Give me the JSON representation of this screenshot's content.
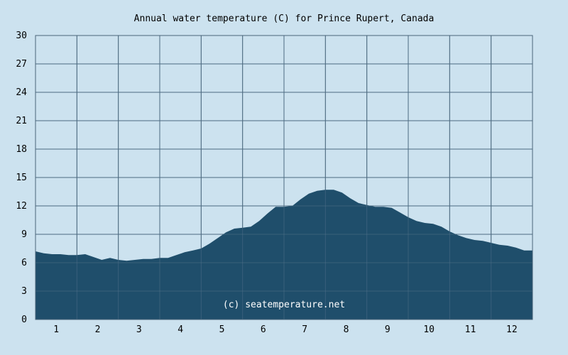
{
  "chart_data": {
    "type": "area",
    "title": "Annual water temperature (C) for Prince Rupert, Canada",
    "xlabel": "",
    "ylabel": "",
    "ylim": [
      0,
      30
    ],
    "yticks": [
      "0",
      "3",
      "6",
      "9",
      "12",
      "15",
      "18",
      "21",
      "24",
      "27",
      "30"
    ],
    "categories": [
      "1",
      "2",
      "3",
      "4",
      "5",
      "6",
      "7",
      "8",
      "9",
      "10",
      "11",
      "12"
    ],
    "xlim": [
      0.5,
      12.5
    ],
    "grid": true,
    "watermark": "(c) seatemperature.net",
    "series": [
      {
        "color": "#1f4e6b",
        "x": [
          0.5,
          0.7,
          0.9,
          1.1,
          1.3,
          1.5,
          1.7,
          1.9,
          2.1,
          2.3,
          2.5,
          2.7,
          2.9,
          3.1,
          3.3,
          3.5,
          3.7,
          3.9,
          4.1,
          4.3,
          4.5,
          4.7,
          4.9,
          5.1,
          5.3,
          5.5,
          5.7,
          5.9,
          6.1,
          6.3,
          6.5,
          6.7,
          6.9,
          7.1,
          7.3,
          7.5,
          7.7,
          7.9,
          8.1,
          8.3,
          8.5,
          8.7,
          8.9,
          9.1,
          9.3,
          9.5,
          9.7,
          9.9,
          10.1,
          10.3,
          10.5,
          10.7,
          10.9,
          11.1,
          11.3,
          11.5,
          11.7,
          11.9,
          12.1,
          12.3,
          12.5
        ],
        "values": [
          7.2,
          7.0,
          6.9,
          6.9,
          6.8,
          6.8,
          6.9,
          6.6,
          6.3,
          6.5,
          6.3,
          6.2,
          6.3,
          6.4,
          6.4,
          6.5,
          6.5,
          6.8,
          7.1,
          7.3,
          7.5,
          8.0,
          8.6,
          9.2,
          9.6,
          9.7,
          9.8,
          10.4,
          11.2,
          11.9,
          11.9,
          12.0,
          12.7,
          13.3,
          13.6,
          13.7,
          13.7,
          13.4,
          12.8,
          12.3,
          12.1,
          11.9,
          11.9,
          11.8,
          11.3,
          10.8,
          10.4,
          10.2,
          10.1,
          9.8,
          9.3,
          8.9,
          8.6,
          8.4,
          8.3,
          8.1,
          7.9,
          7.8,
          7.6,
          7.3,
          7.3
        ]
      }
    ]
  }
}
